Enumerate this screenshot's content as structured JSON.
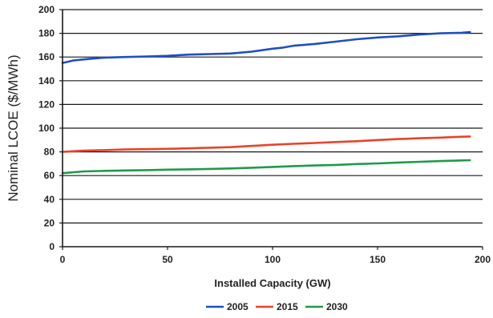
{
  "chart_data": {
    "type": "line",
    "title": "",
    "xlabel": "Installed Capacity (GW)",
    "ylabel": "Nominal LCOE ($/MWh)",
    "xlim": [
      0,
      200
    ],
    "ylim": [
      0,
      200
    ],
    "x_ticks": [
      0,
      50,
      100,
      150,
      200
    ],
    "y_ticks": [
      0,
      20,
      40,
      60,
      80,
      100,
      120,
      140,
      160,
      180,
      200
    ],
    "grid": "horizontal",
    "legend": "bottom",
    "series": [
      {
        "name": "2005",
        "color": "#1f4fbf",
        "x": [
          0,
          5,
          10,
          20,
          30,
          40,
          50,
          60,
          70,
          80,
          90,
          100,
          105,
          110,
          120,
          130,
          140,
          150,
          160,
          170,
          180,
          190,
          194
        ],
        "y": [
          155,
          157,
          158,
          159.5,
          160,
          160.5,
          161,
          162,
          162.5,
          163,
          164.5,
          167,
          168,
          169.5,
          171,
          173,
          175,
          176.5,
          177.5,
          179,
          180,
          180.5,
          181
        ]
      },
      {
        "name": "2015",
        "color": "#e8432a",
        "x": [
          0,
          10,
          20,
          30,
          40,
          50,
          60,
          70,
          80,
          90,
          100,
          110,
          120,
          130,
          140,
          150,
          160,
          170,
          180,
          190,
          194
        ],
        "y": [
          80,
          81,
          81.5,
          82,
          82.3,
          82.6,
          83,
          83.5,
          84,
          85,
          86,
          86.8,
          87.5,
          88.3,
          89,
          90,
          90.8,
          91.5,
          92,
          92.8,
          93
        ]
      },
      {
        "name": "2030",
        "color": "#1f9a4a",
        "x": [
          0,
          10,
          20,
          30,
          40,
          50,
          60,
          70,
          80,
          90,
          100,
          110,
          120,
          130,
          140,
          150,
          160,
          170,
          180,
          190,
          194
        ],
        "y": [
          62,
          63.5,
          64,
          64.3,
          64.6,
          65,
          65.3,
          65.6,
          66,
          66.6,
          67.3,
          68,
          68.5,
          69,
          69.7,
          70.3,
          71,
          71.6,
          72.2,
          72.8,
          73
        ]
      }
    ]
  }
}
